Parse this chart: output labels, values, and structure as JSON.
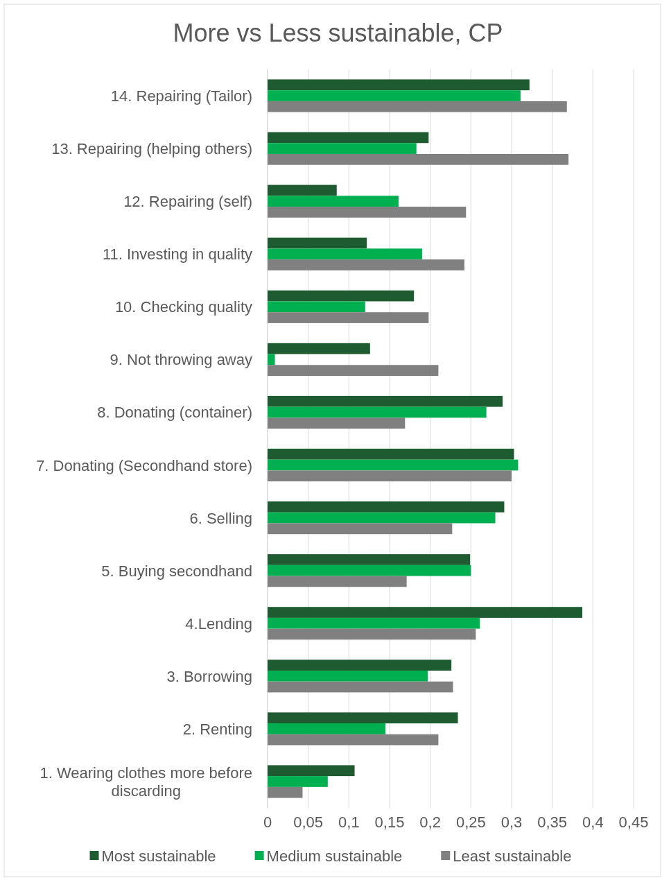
{
  "chart_data": {
    "type": "bar",
    "orientation": "horizontal",
    "title": "More vs Less sustainable, CP",
    "categories": [
      "14. Repairing (Tailor)",
      "13. Repairing (helping others)",
      "12. Repairing (self)",
      "11. Investing in quality",
      "10. Checking quality",
      "9. Not throwing away",
      "8. Donating (container)",
      "7. Donating (Secondhand store)",
      "6. Selling",
      "5. Buying secondhand",
      "4.Lending",
      "3. Borrowing",
      "2. Renting",
      "1. Wearing clothes more before discarding"
    ],
    "series": [
      {
        "name": "Most sustainable",
        "color": "#1e5b30",
        "values": [
          0.322,
          0.198,
          0.085,
          0.122,
          0.18,
          0.126,
          0.289,
          0.303,
          0.291,
          0.249,
          0.387,
          0.226,
          0.234,
          0.107
        ]
      },
      {
        "name": "Medium sustainable",
        "color": "#00b050",
        "values": [
          0.311,
          0.183,
          0.161,
          0.19,
          0.12,
          0.009,
          0.269,
          0.308,
          0.28,
          0.25,
          0.261,
          0.197,
          0.145,
          0.074
        ]
      },
      {
        "name": "Least sustainable",
        "color": "#808080",
        "values": [
          0.368,
          0.37,
          0.244,
          0.242,
          0.198,
          0.21,
          0.169,
          0.3,
          0.227,
          0.171,
          0.256,
          0.228,
          0.21,
          0.043
        ]
      }
    ],
    "xlim": [
      0,
      0.45
    ],
    "xticks": [
      0,
      {
        "value": 0.05,
        "label": "0,05"
      },
      {
        "value": 0.1,
        "label": "0,1"
      },
      {
        "value": 0.15,
        "label": "0,15"
      },
      {
        "value": 0.2,
        "label": "0,2"
      },
      {
        "value": 0.25,
        "label": "0,25"
      },
      {
        "value": 0.3,
        "label": "0,3"
      },
      {
        "value": 0.35,
        "label": "0,35"
      },
      {
        "value": 0.4,
        "label": "0,4"
      },
      {
        "value": 0.45,
        "label": "0,45"
      }
    ],
    "grid": "x",
    "legend": "bottom"
  }
}
